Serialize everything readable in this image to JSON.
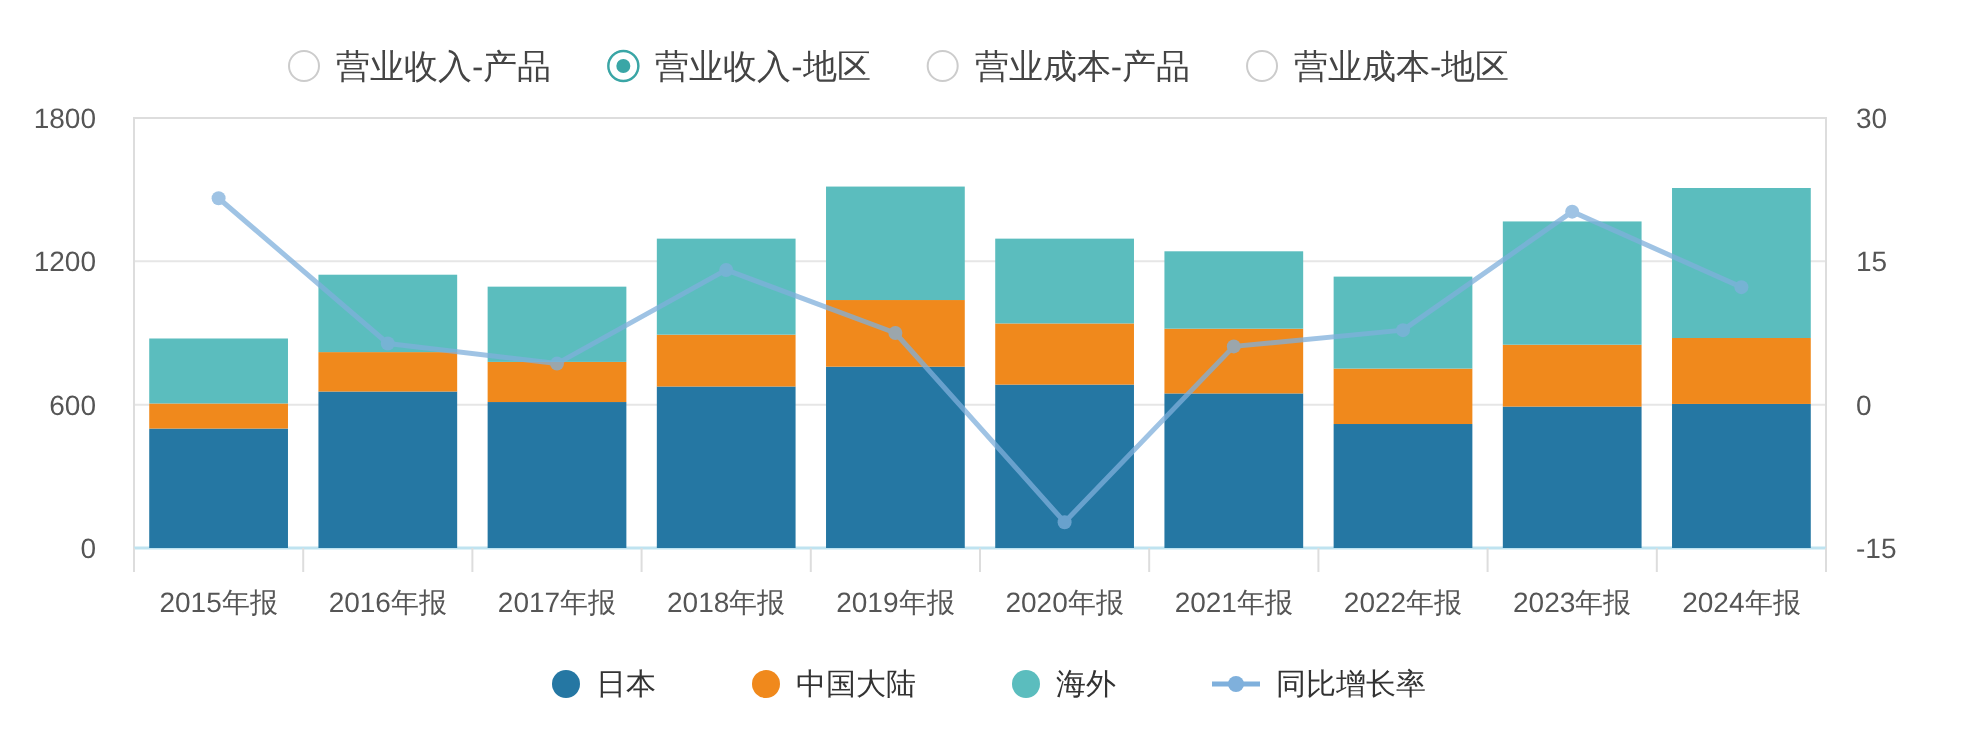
{
  "chart_data": {
    "type": "bar",
    "stacked": true,
    "categories": [
      "2015年报",
      "2016年报",
      "2017年报",
      "2018年报",
      "2019年报",
      "2020年报",
      "2021年报",
      "2022年报",
      "2023年报",
      "2024年报"
    ],
    "series": [
      {
        "name": "日本",
        "color": "#2577a3",
        "values": [
          500,
          655,
          611,
          676,
          759,
          684,
          647,
          519,
          592,
          603
        ]
      },
      {
        "name": "中国大陆",
        "color": "#f0891c",
        "values": [
          105,
          165,
          168,
          217,
          279,
          256,
          271,
          232,
          259,
          276
        ]
      },
      {
        "name": "海外",
        "color": "#5bbdbe",
        "values": [
          272,
          324,
          315,
          402,
          475,
          355,
          324,
          385,
          516,
          628
        ]
      },
      {
        "name": "同比增长率",
        "type": "line",
        "axis": "y2",
        "marker": "circle",
        "color": "#7fb0dc",
        "values": [
          21.6,
          6.4,
          4.3,
          14.1,
          7.5,
          -12.3,
          6.1,
          7.8,
          20.2,
          12.3
        ]
      }
    ],
    "ylim": [
      0,
      1800
    ],
    "yticks": [
      0,
      600,
      1200,
      1800
    ],
    "y2lim": [
      -15,
      30
    ],
    "y2ticks": [
      -15,
      0,
      15,
      30
    ],
    "grid": "y",
    "legend": "bottom",
    "annotations": [
      "营业收入-产品",
      "营业收入-地区",
      "营业成本-产品",
      "营业成本-地区"
    ]
  }
}
